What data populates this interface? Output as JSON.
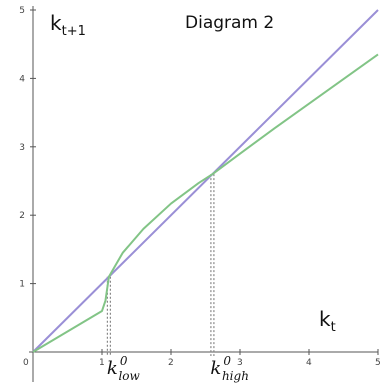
{
  "title": "Diagram 2",
  "colors": {
    "axis": "#555555",
    "identity_line": "#9a8fd6",
    "curve": "#82c486",
    "dashed": "#888888"
  },
  "chart_data": {
    "type": "line",
    "title": "Diagram 2",
    "xlabel": "k",
    "xlabel_sub": "t",
    "ylabel": "k",
    "ylabel_sub": "t+1",
    "xlim": [
      0,
      5
    ],
    "ylim": [
      0,
      5
    ],
    "x_ticks": [
      "1",
      "2",
      "3",
      "4",
      "5"
    ],
    "y_ticks": [
      "1",
      "2",
      "3",
      "4",
      "5"
    ],
    "x_tick_values": [
      1,
      2,
      3,
      4,
      5
    ],
    "y_tick_values": [
      1,
      2,
      3,
      4,
      5
    ],
    "grid": false,
    "series": [
      {
        "x": [
          0,
          5
        ],
        "y": [
          0,
          5
        ]
      },
      {
        "x": [
          0,
          1.0,
          1.05,
          1.1,
          1.3,
          1.6,
          2.0,
          2.4,
          2.6,
          3.0,
          3.5,
          4.0,
          4.5,
          5.0
        ],
        "y": [
          0,
          0.6,
          0.75,
          1.1,
          1.45,
          1.8,
          2.17,
          2.47,
          2.6,
          2.9,
          3.27,
          3.63,
          3.99,
          4.35
        ]
      }
    ],
    "vertical_markers": [
      {
        "x": 1.1,
        "y": 1.1,
        "label_main": "k",
        "label_sup": "0",
        "label_sub": "low"
      },
      {
        "x": 2.6,
        "y": 2.6,
        "label_main": "k",
        "label_sup": "0",
        "label_sub": "high"
      }
    ],
    "origin_label": "0"
  }
}
